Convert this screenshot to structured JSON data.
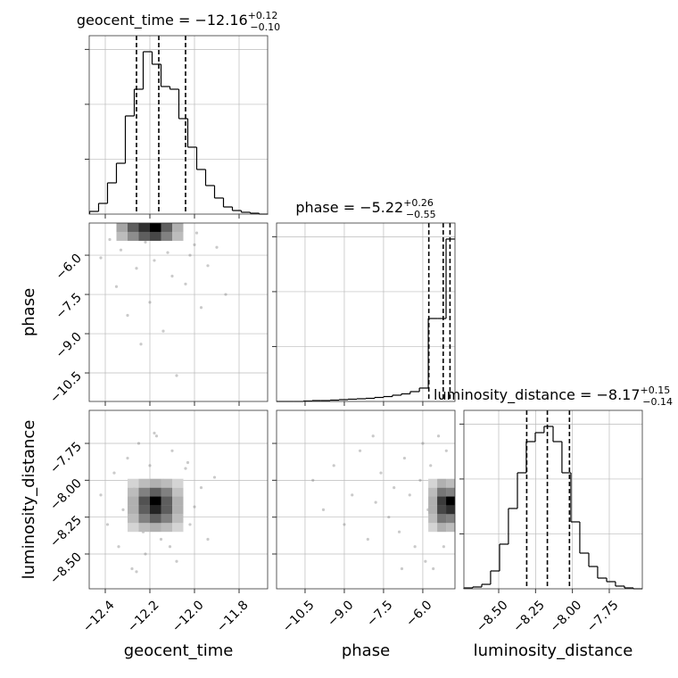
{
  "chart_data": {
    "type": "corner",
    "parameters": [
      {
        "name": "geocent_time",
        "lim": [
          -12.472,
          -11.672
        ],
        "ticks": [
          {
            "value": -12.4,
            "label": "−12.4"
          },
          {
            "value": -12.2,
            "label": "−12.2"
          },
          {
            "value": -12.0,
            "label": "−12.0"
          },
          {
            "value": -11.8,
            "label": "−11.8"
          }
        ]
      },
      {
        "name": "phase",
        "lim": [
          -11.59,
          -4.77
        ],
        "ticks": [
          {
            "value": -10.5,
            "label": "−10.5"
          },
          {
            "value": -9.0,
            "label": "−9.0"
          },
          {
            "value": -7.5,
            "label": "−7.5"
          },
          {
            "value": -6.0,
            "label": "−6.0"
          }
        ]
      },
      {
        "name": "luminosity_distance",
        "lim": [
          -8.736,
          -7.526
        ],
        "ticks": [
          {
            "value": -8.5,
            "label": "−8.50"
          },
          {
            "value": -8.25,
            "label": "−8.25"
          },
          {
            "value": -8.0,
            "label": "−8.00"
          },
          {
            "value": -7.75,
            "label": "−7.75"
          }
        ]
      }
    ],
    "histograms": [
      {
        "title": "geocent_time = −12.16",
        "title_sup": "+0.12",
        "title_sub": "−0.10",
        "quantiles": [
          -12.26,
          -12.16,
          -12.04
        ],
        "ylim": [
          0,
          3250
        ],
        "yticks": [
          1000,
          2000,
          3000
        ],
        "bins": [
          -12.47,
          -12.43,
          -12.39,
          -12.35,
          -12.31,
          -12.27,
          -12.23,
          -12.19,
          -12.15,
          -12.11,
          -12.07,
          -12.03,
          -11.99,
          -11.95,
          -11.91,
          -11.87,
          -11.83,
          -11.79,
          -11.75,
          -11.71,
          -11.67
        ],
        "counts": [
          49,
          195,
          569,
          926,
          1788,
          2275,
          2958,
          2730,
          2324,
          2275,
          1739,
          1219,
          813,
          520,
          293,
          130,
          65,
          33,
          16,
          0
        ]
      },
      {
        "title": "phase = −5.22",
        "title_sup": "+0.26",
        "title_sub": "−0.55",
        "quantiles": [
          -5.77,
          -5.22,
          -4.96
        ],
        "ylim": [
          0,
          3250
        ],
        "yticks": [
          1000,
          2000,
          3000
        ],
        "bins": [
          -11.59,
          -11.25,
          -10.91,
          -10.57,
          -10.23,
          -9.89,
          -9.54,
          -9.2,
          -8.86,
          -8.52,
          -8.18,
          -7.84,
          -7.5,
          -7.16,
          -6.82,
          -6.48,
          -6.13,
          -5.79,
          -5.45,
          -5.11,
          -4.77
        ],
        "counts": [
          0,
          0,
          0,
          8,
          16,
          16,
          24,
          33,
          41,
          49,
          57,
          73,
          89,
          114,
          138,
          179,
          244,
          1511,
          1511,
          2958
        ]
      },
      {
        "title": "luminosity_distance = −8.17",
        "title_sup": "+0.15",
        "title_sub": "−0.14",
        "quantiles": [
          -8.31,
          -8.17,
          -8.02
        ],
        "ylim": [
          0,
          3250
        ],
        "yticks": [
          1000,
          2000,
          3000
        ],
        "bins": [
          -8.736,
          -8.676,
          -8.615,
          -8.555,
          -8.494,
          -8.434,
          -8.373,
          -8.313,
          -8.252,
          -8.192,
          -8.131,
          -8.071,
          -8.01,
          -7.95,
          -7.889,
          -7.829,
          -7.768,
          -7.708,
          -7.647,
          -7.587,
          -7.526
        ],
        "counts": [
          16,
          33,
          81,
          325,
          813,
          1463,
          2113,
          2681,
          2844,
          2958,
          2681,
          2113,
          1219,
          650,
          406,
          195,
          130,
          49,
          16,
          0
        ]
      }
    ],
    "pairs": [
      {
        "x_param": 0,
        "y_param": 1,
        "hist2d": {
          "xbins": [
            -12.35,
            -12.3,
            -12.25,
            -12.2,
            -12.15,
            -12.1,
            -12.05
          ],
          "ybins": [
            -5.45,
            -5.11,
            -4.77
          ],
          "counts": [
            [
              20,
              40,
              60,
              70,
              45,
              20
            ],
            [
              30,
              60,
              80,
              100,
              60,
              25
            ]
          ]
        },
        "x": [
          -12.42,
          -12.38,
          -12.35,
          -12.33,
          -12.3,
          -12.28,
          -12.26,
          -12.24,
          -12.22,
          -12.2,
          -12.18,
          -12.16,
          -12.14,
          -12.12,
          -12.1,
          -12.08,
          -12.06,
          -12.04,
          -12.02,
          -12.0,
          -11.97,
          -11.94,
          -11.9,
          -11.86,
          -12.31,
          -12.19,
          -12.09,
          -12.25,
          -12.13,
          -11.99
        ],
        "y": [
          -6.1,
          -5.4,
          -7.2,
          -5.8,
          -8.3,
          -5.2,
          -6.5,
          -9.4,
          -5.5,
          -7.8,
          -6.2,
          -5.1,
          -8.9,
          -5.9,
          -6.8,
          -10.6,
          -5.3,
          -7.1,
          -6.0,
          -5.6,
          -8.0,
          -6.4,
          -5.7,
          -7.5,
          -5.0,
          -5.2,
          -5.1,
          -4.95,
          -4.9,
          -5.15
        ]
      },
      {
        "x_param": 0,
        "y_param": 2,
        "hist2d": {
          "xbins": [
            -12.3,
            -12.25,
            -12.2,
            -12.15,
            -12.1,
            -12.05
          ],
          "ybins": [
            -8.35,
            -8.29,
            -8.23,
            -8.17,
            -8.11,
            -8.05,
            -7.99
          ],
          "counts": [
            [
              10,
              20,
              25,
              20,
              10
            ],
            [
              20,
              45,
              60,
              45,
              20
            ],
            [
              25,
              60,
              85,
              60,
              25
            ],
            [
              25,
              65,
              100,
              60,
              25
            ],
            [
              20,
              45,
              60,
              45,
              18
            ],
            [
              10,
              20,
              25,
              20,
              10
            ]
          ]
        },
        "x": [
          -12.42,
          -12.39,
          -12.36,
          -12.34,
          -12.32,
          -12.3,
          -12.28,
          -12.27,
          -12.25,
          -12.23,
          -12.22,
          -12.2,
          -12.19,
          -12.17,
          -12.15,
          -12.14,
          -12.12,
          -12.1,
          -12.08,
          -12.06,
          -12.04,
          -12.02,
          -12.0,
          -11.97,
          -11.94,
          -11.91,
          -12.26,
          -12.18,
          -12.11,
          -12.03
        ],
        "y": [
          -8.1,
          -8.3,
          -7.95,
          -8.45,
          -8.2,
          -7.85,
          -8.6,
          -8.05,
          -7.75,
          -8.35,
          -8.5,
          -7.9,
          -8.15,
          -7.7,
          -8.4,
          -8.0,
          -8.25,
          -7.8,
          -8.55,
          -8.1,
          -7.92,
          -8.3,
          -8.18,
          -8.05,
          -8.4,
          -7.98,
          -8.62,
          -7.68,
          -8.45,
          -7.88
        ]
      },
      {
        "x_param": 1,
        "y_param": 2,
        "hist2d": {
          "xbins": [
            -5.79,
            -5.45,
            -5.11,
            -4.77
          ],
          "ybins": [
            -8.35,
            -8.29,
            -8.23,
            -8.17,
            -8.11,
            -8.05,
            -7.99
          ],
          "counts": [
            [
              10,
              25,
              20
            ],
            [
              20,
              50,
              45
            ],
            [
              25,
              70,
              80
            ],
            [
              25,
              75,
              100
            ],
            [
              20,
              50,
              45
            ],
            [
              10,
              25,
              20
            ]
          ]
        },
        "x": [
          -10.2,
          -9.8,
          -9.4,
          -9.0,
          -8.7,
          -8.4,
          -8.1,
          -7.8,
          -7.6,
          -7.3,
          -7.1,
          -6.9,
          -6.7,
          -6.5,
          -6.3,
          -6.1,
          -6.0,
          -5.9,
          -5.8,
          -5.7,
          -5.6,
          -5.5,
          -5.4,
          -5.3,
          -5.2,
          -5.1,
          -5.0,
          -4.9,
          -6.8,
          -7.9
        ],
        "y": [
          -8.0,
          -8.2,
          -7.9,
          -8.3,
          -8.1,
          -7.8,
          -8.4,
          -8.15,
          -7.95,
          -8.25,
          -8.05,
          -8.35,
          -7.85,
          -8.1,
          -8.45,
          -8.0,
          -7.75,
          -8.55,
          -8.2,
          -7.9,
          -8.6,
          -8.3,
          -7.7,
          -8.1,
          -8.45,
          -7.8,
          -8.25,
          -8.0,
          -8.6,
          -7.7
        ]
      }
    ],
    "grid": true
  }
}
